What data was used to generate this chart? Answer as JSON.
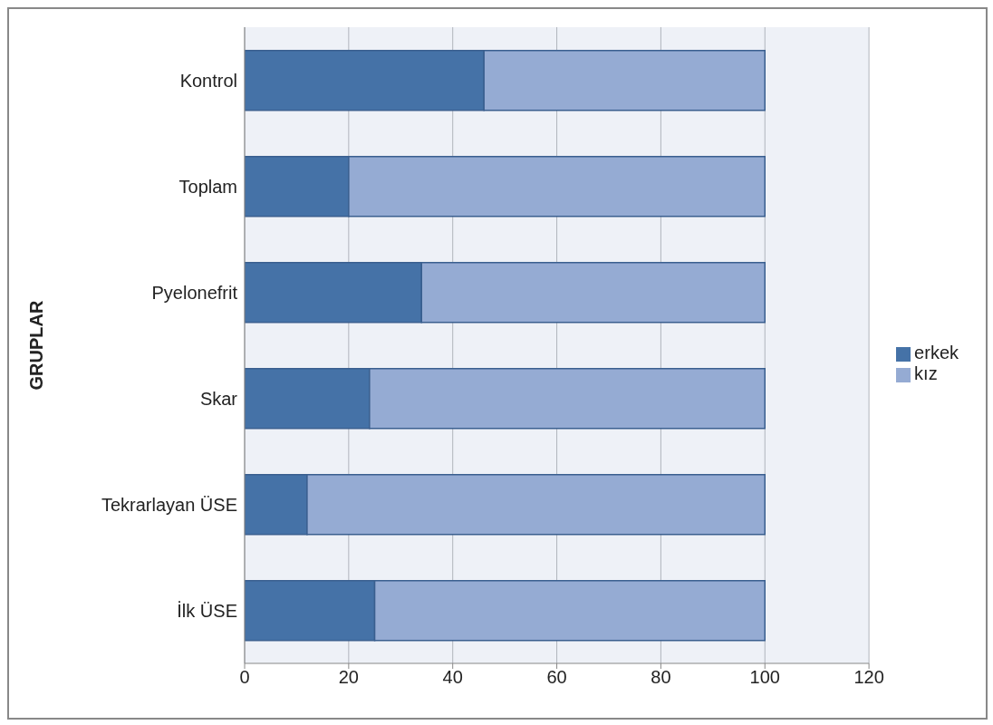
{
  "chart_data": {
    "type": "bar",
    "orientation": "horizontal",
    "stacked": true,
    "ylabel": "GRUPLAR",
    "categories": [
      "Kontrol",
      "Toplam",
      "Pyelonefrit",
      "Skar",
      "Tekrarlayan ÜSE",
      "İlk ÜSE"
    ],
    "series": [
      {
        "name": "erkek",
        "color": "#4572a7",
        "values": [
          46,
          20,
          34,
          24,
          12,
          25
        ]
      },
      {
        "name": "kız",
        "color": "#95abd3",
        "values": [
          54,
          80,
          66,
          76,
          88,
          75
        ]
      }
    ],
    "xlim": [
      0,
      120
    ],
    "xticks": [
      0,
      20,
      40,
      60,
      80,
      100,
      120
    ],
    "grid": "x",
    "legend": "right"
  }
}
